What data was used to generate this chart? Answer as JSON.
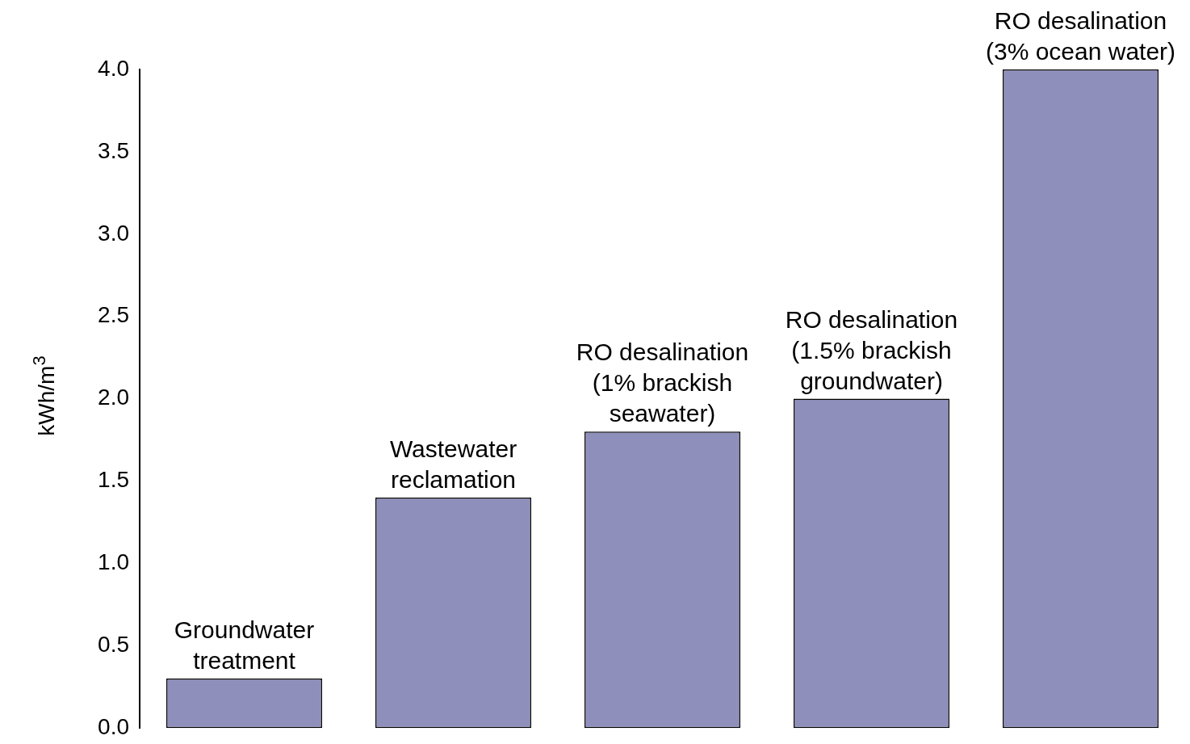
{
  "chart_data": {
    "type": "bar",
    "ylabel": "kWh/m$^{3}$",
    "categories": [
      "Groundwater\ntreatment",
      "Wastewater\nreclamation",
      "RO desalination\n(1% brackish\nseawater)",
      "RO desalination\n(1.5% brackish\ngroundwater)",
      "RO desalination\n(3% ocean water)"
    ],
    "values": [
      0.3,
      1.4,
      1.8,
      2.0,
      4.0
    ],
    "color": "#8f8fbc",
    "ylim": [
      0,
      4.0
    ],
    "yticks": [
      {
        "value": 0,
        "label": "0.0"
      },
      0.5,
      {
        "value": 1,
        "label": "1.0"
      },
      1.5,
      {
        "value": 2,
        "label": "2.0"
      },
      2.5,
      {
        "value": 3,
        "label": "3.0"
      },
      3.5,
      {
        "value": 4,
        "label": "4.0"
      }
    ],
    "tick_labels": "y",
    "grid": false,
    "legend": false
  }
}
